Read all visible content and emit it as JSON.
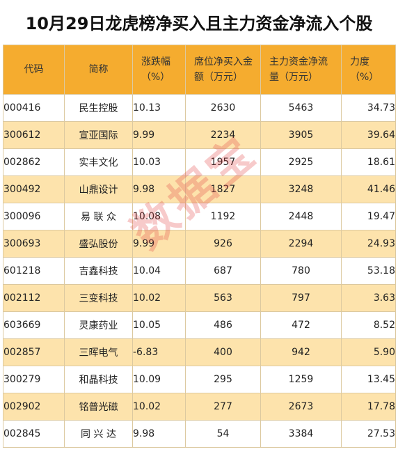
{
  "title": "10月29日龙虎榜净买入且主力资金净流入个股",
  "watermark": "数据宝",
  "columns": {
    "code": "代码",
    "name": "简称",
    "chg_l1": "涨跌幅",
    "chg_l2": "（%）",
    "seat_l1": "席位净买入金",
    "seat_l2": "额（万元）",
    "main_l1": "主力资金净流",
    "main_l2": "量（万元）",
    "force_l1": "力度",
    "force_l2": "（%）"
  },
  "rows": [
    {
      "code": "000416",
      "name": "民生控股",
      "chg": "10.13",
      "seat": "2630",
      "main": "5463",
      "force": "34.73"
    },
    {
      "code": "300612",
      "name": "宣亚国际",
      "chg": "9.99",
      "seat": "2234",
      "main": "3905",
      "force": "39.64"
    },
    {
      "code": "002862",
      "name": "实丰文化",
      "chg": "10.03",
      "seat": "1957",
      "main": "2925",
      "force": "18.61"
    },
    {
      "code": "300492",
      "name": "山鼎设计",
      "chg": "9.98",
      "seat": "1827",
      "main": "3248",
      "force": "41.46"
    },
    {
      "code": "300096",
      "name": "易 联 众",
      "chg": "10.08",
      "seat": "1192",
      "main": "2448",
      "force": "19.47"
    },
    {
      "code": "300693",
      "name": "盛弘股份",
      "chg": "9.99",
      "seat": "926",
      "main": "2294",
      "force": "24.93"
    },
    {
      "code": "601218",
      "name": "吉鑫科技",
      "chg": "10.04",
      "seat": "687",
      "main": "780",
      "force": "53.18"
    },
    {
      "code": "002112",
      "name": "三变科技",
      "chg": "10.02",
      "seat": "563",
      "main": "797",
      "force": "3.63"
    },
    {
      "code": "603669",
      "name": "灵康药业",
      "chg": "10.05",
      "seat": "486",
      "main": "472",
      "force": "8.52"
    },
    {
      "code": "002857",
      "name": "三晖电气",
      "chg": "-6.83",
      "seat": "400",
      "main": "942",
      "force": "5.90"
    },
    {
      "code": "300279",
      "name": "和晶科技",
      "chg": "10.09",
      "seat": "295",
      "main": "1259",
      "force": "13.45"
    },
    {
      "code": "002902",
      "name": "铭普光磁",
      "chg": "10.02",
      "seat": "277",
      "main": "2673",
      "force": "17.78"
    },
    {
      "code": "002845",
      "name": "同 兴 达",
      "chg": "9.98",
      "seat": "54",
      "main": "3384",
      "force": "27.53"
    }
  ]
}
